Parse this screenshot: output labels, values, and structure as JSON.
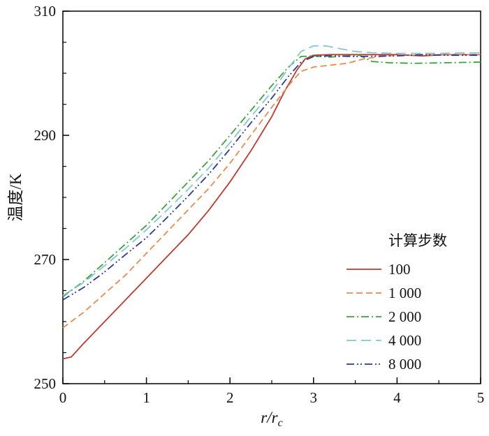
{
  "chart_data": {
    "type": "line",
    "title": "",
    "xlabel_main": "r/r",
    "xlabel_sub": "c",
    "ylabel": "温度/K",
    "xlim": [
      0,
      5
    ],
    "ylim": [
      250,
      310
    ],
    "xticks": [
      0,
      1,
      2,
      3,
      4,
      5
    ],
    "xticks_minor": [
      0.5,
      1.5,
      2.5,
      3.5,
      4.5
    ],
    "yticks": [
      250,
      270,
      290,
      310
    ],
    "yticks_minor": [
      255,
      260,
      265,
      275,
      280,
      285,
      295,
      300,
      305
    ],
    "grid": false,
    "legend_title": "计算步数",
    "legend_position": "inside lower right",
    "series": [
      {
        "name": "100",
        "color": "#c0392b",
        "dash": "solid",
        "points": [
          [
            0,
            254
          ],
          [
            0.1,
            254.3
          ],
          [
            0.25,
            256.5
          ],
          [
            0.5,
            260
          ],
          [
            0.75,
            263.5
          ],
          [
            1,
            267
          ],
          [
            1.25,
            270.5
          ],
          [
            1.5,
            274
          ],
          [
            1.75,
            278
          ],
          [
            2,
            282.5
          ],
          [
            2.25,
            287.5
          ],
          [
            2.5,
            293
          ],
          [
            2.65,
            297
          ],
          [
            2.8,
            300.5
          ],
          [
            2.9,
            302.3
          ],
          [
            3,
            302.9
          ],
          [
            3.2,
            303
          ],
          [
            3.5,
            303
          ],
          [
            4,
            303
          ],
          [
            4.3,
            302.8
          ],
          [
            4.6,
            303
          ],
          [
            5,
            303
          ]
        ]
      },
      {
        "name": "1 000",
        "color": "#e98b4e",
        "dash": "dashed",
        "points": [
          [
            0,
            259
          ],
          [
            0.25,
            261.5
          ],
          [
            0.5,
            264.5
          ],
          [
            0.75,
            267.5
          ],
          [
            1,
            271
          ],
          [
            1.25,
            274.5
          ],
          [
            1.5,
            278
          ],
          [
            1.75,
            281.5
          ],
          [
            2,
            285.5
          ],
          [
            2.25,
            290
          ],
          [
            2.5,
            294.5
          ],
          [
            2.7,
            298
          ],
          [
            2.85,
            300.3
          ],
          [
            3,
            301
          ],
          [
            3.2,
            301.3
          ],
          [
            3.4,
            301.6
          ],
          [
            3.6,
            302.3
          ],
          [
            3.8,
            302.7
          ],
          [
            4,
            302.9
          ],
          [
            4.5,
            303
          ],
          [
            5,
            303
          ]
        ]
      },
      {
        "name": "2 000",
        "color": "#3aa336",
        "dash": "dashdot",
        "points": [
          [
            0,
            264
          ],
          [
            0.25,
            266.5
          ],
          [
            0.5,
            269.5
          ],
          [
            0.75,
            272.5
          ],
          [
            1,
            275.5
          ],
          [
            1.25,
            279
          ],
          [
            1.5,
            282.5
          ],
          [
            1.75,
            286
          ],
          [
            2,
            290
          ],
          [
            2.25,
            294
          ],
          [
            2.5,
            298
          ],
          [
            2.7,
            301
          ],
          [
            2.85,
            302.7
          ],
          [
            3,
            302.8
          ],
          [
            3.2,
            302.6
          ],
          [
            3.4,
            302.8
          ],
          [
            3.55,
            302.9
          ],
          [
            3.7,
            301.9
          ],
          [
            3.9,
            301.7
          ],
          [
            4.2,
            301.6
          ],
          [
            4.6,
            301.7
          ],
          [
            5,
            301.8
          ]
        ]
      },
      {
        "name": "4 000",
        "color": "#82c8d2",
        "dash": "longdash",
        "points": [
          [
            0,
            264.2
          ],
          [
            0.25,
            266.3
          ],
          [
            0.5,
            269
          ],
          [
            0.75,
            271.8
          ],
          [
            1,
            274.8
          ],
          [
            1.25,
            278
          ],
          [
            1.5,
            281.3
          ],
          [
            1.75,
            284.8
          ],
          [
            2,
            288.8
          ],
          [
            2.25,
            293
          ],
          [
            2.5,
            297
          ],
          [
            2.7,
            300.8
          ],
          [
            2.85,
            303.5
          ],
          [
            3,
            304.4
          ],
          [
            3.15,
            304.4
          ],
          [
            3.3,
            304
          ],
          [
            3.5,
            303.5
          ],
          [
            3.7,
            303.3
          ],
          [
            4,
            303.2
          ],
          [
            4.5,
            303.2
          ],
          [
            5,
            303.3
          ]
        ]
      },
      {
        "name": "8 000",
        "color": "#2f3a94",
        "dash": "dashdotdot",
        "points": [
          [
            0,
            263.5
          ],
          [
            0.25,
            265.5
          ],
          [
            0.5,
            268
          ],
          [
            0.75,
            270.8
          ],
          [
            1,
            273.5
          ],
          [
            1.25,
            276.8
          ],
          [
            1.5,
            280.2
          ],
          [
            1.75,
            283.8
          ],
          [
            2,
            287.8
          ],
          [
            2.25,
            292
          ],
          [
            2.5,
            296
          ],
          [
            2.7,
            299.5
          ],
          [
            2.85,
            301.8
          ],
          [
            3,
            302.7
          ],
          [
            3.2,
            302.8
          ],
          [
            3.5,
            302.7
          ],
          [
            4,
            302.8
          ],
          [
            4.3,
            303
          ],
          [
            4.6,
            302.9
          ],
          [
            5,
            302.9
          ]
        ]
      }
    ]
  }
}
